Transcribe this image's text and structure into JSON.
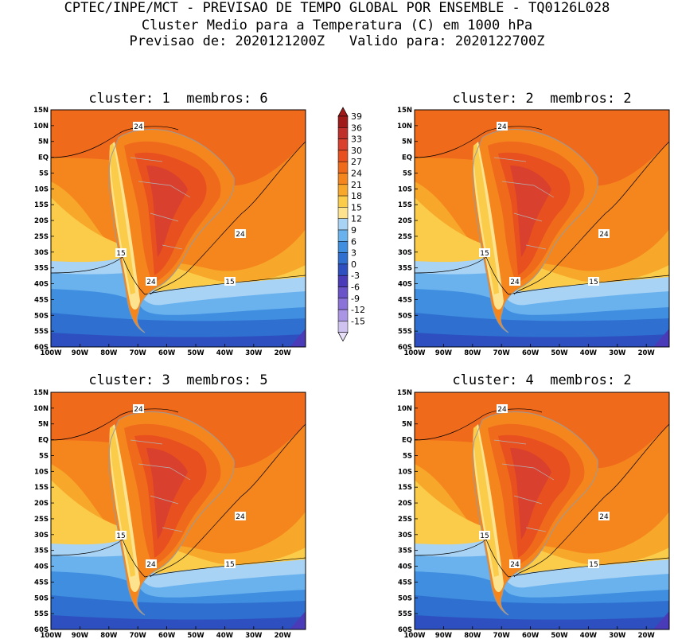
{
  "header": {
    "line1": "CPTEC/INPE/MCT - PREVISAO DE TEMPO GLOBAL POR ENSEMBLE - TQ0126L028",
    "line2": "Cluster Medio para a Temperatura (C) em 1000 hPa",
    "line3": "Previsao de: 2020121200Z   Valido para: 2020122700Z"
  },
  "panels": [
    {
      "title": "cluster: 1  membros: 6"
    },
    {
      "title": "cluster: 2  membros: 2"
    },
    {
      "title": "cluster: 3  membros: 5"
    },
    {
      "title": "cluster: 4  membros: 2"
    }
  ],
  "lat_labels": [
    "15N",
    "10N",
    "5N",
    "EQ",
    "5S",
    "10S",
    "15S",
    "20S",
    "25S",
    "30S",
    "35S",
    "40S",
    "45S",
    "50S",
    "55S",
    "60S"
  ],
  "lon_labels": [
    "100W",
    "90W",
    "80W",
    "70W",
    "60W",
    "50W",
    "40W",
    "30W",
    "20W"
  ],
  "contour_labels": {
    "c24": "24",
    "c15": "15"
  },
  "colorbar": {
    "levels": [
      "39",
      "36",
      "33",
      "30",
      "27",
      "24",
      "21",
      "18",
      "15",
      "12",
      "9",
      "6",
      "3",
      "0",
      "-3",
      "-6",
      "-9",
      "-12",
      "-15"
    ],
    "colors": [
      "#a01a1a",
      "#c0302a",
      "#d9402e",
      "#e8501f",
      "#f06a1c",
      "#f5861e",
      "#f7a72a",
      "#fbcb4a",
      "#fde38e",
      "#a9d3f5",
      "#6ab2ee",
      "#3f8ee0",
      "#2f6fd0",
      "#2e4fc0",
      "#4a3cb8",
      "#6a52c8",
      "#8a72d8",
      "#aa95e4",
      "#cfc2f0"
    ]
  }
}
